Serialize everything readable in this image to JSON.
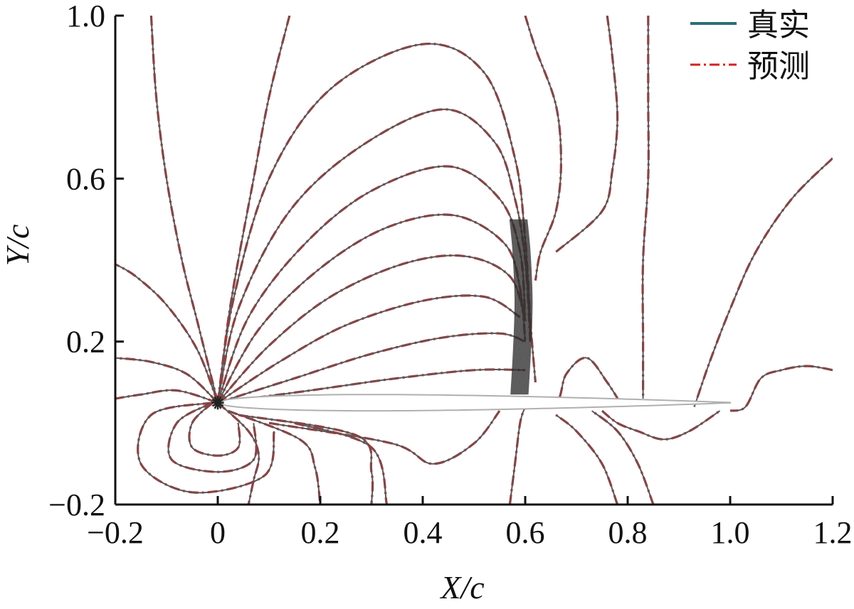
{
  "chart_data": {
    "type": "contour",
    "title": "",
    "xlabel": "X/c",
    "ylabel": "Y/c",
    "xlim": [
      -0.2,
      1.2
    ],
    "ylim": [
      -0.2,
      1.0
    ],
    "xticks": [
      -0.2,
      0,
      0.2,
      0.4,
      0.6,
      0.8,
      1.0,
      1.2
    ],
    "xtick_labels": [
      "−0.2",
      "0",
      "0.2",
      "0.4",
      "0.6",
      "0.8",
      "1.0",
      "1.2"
    ],
    "yticks": [
      -0.2,
      0.2,
      0.6,
      1.0
    ],
    "ytick_labels": [
      "−0.2",
      "0.2",
      "0.6",
      "1.0"
    ],
    "grid": false,
    "legend_position": "top-right",
    "series": [
      {
        "name": "真实",
        "style": "solid",
        "color": "#2a6f78"
      },
      {
        "name": "预测",
        "style": "dash-dot",
        "color": "#d42020"
      }
    ],
    "airfoil": {
      "leading_edge": [
        0.0,
        0.05
      ],
      "trailing_edge": [
        1.0,
        0.05
      ],
      "max_thickness": 0.08
    },
    "shock_x": 0.6,
    "contours": [
      [
        [
          -0.13,
          1.0
        ],
        [
          -0.12,
          0.8
        ],
        [
          -0.1,
          0.6
        ],
        [
          -0.07,
          0.4
        ],
        [
          -0.04,
          0.25
        ],
        [
          -0.01,
          0.1
        ],
        [
          0.0,
          0.05
        ]
      ],
      [
        [
          0.14,
          1.0
        ],
        [
          0.1,
          0.8
        ],
        [
          0.07,
          0.6
        ],
        [
          0.04,
          0.4
        ],
        [
          0.02,
          0.25
        ],
        [
          0.005,
          0.1
        ],
        [
          0.0,
          0.05
        ]
      ],
      [
        [
          0.0,
          0.05
        ],
        [
          0.03,
          0.3
        ],
        [
          0.1,
          0.6
        ],
        [
          0.22,
          0.82
        ],
        [
          0.4,
          0.93
        ],
        [
          0.52,
          0.86
        ],
        [
          0.58,
          0.65
        ],
        [
          0.6,
          0.45
        ],
        [
          0.61,
          0.25
        ],
        [
          0.62,
          0.1
        ]
      ],
      [
        [
          0.0,
          0.05
        ],
        [
          0.04,
          0.28
        ],
        [
          0.14,
          0.52
        ],
        [
          0.28,
          0.68
        ],
        [
          0.44,
          0.77
        ],
        [
          0.54,
          0.69
        ],
        [
          0.58,
          0.55
        ],
        [
          0.6,
          0.4
        ],
        [
          0.61,
          0.2
        ]
      ],
      [
        [
          0.0,
          0.05
        ],
        [
          0.06,
          0.26
        ],
        [
          0.17,
          0.44
        ],
        [
          0.3,
          0.57
        ],
        [
          0.45,
          0.63
        ],
        [
          0.55,
          0.55
        ],
        [
          0.59,
          0.42
        ],
        [
          0.6,
          0.25
        ]
      ],
      [
        [
          0.0,
          0.05
        ],
        [
          0.08,
          0.23
        ],
        [
          0.2,
          0.38
        ],
        [
          0.33,
          0.48
        ],
        [
          0.46,
          0.51
        ],
        [
          0.56,
          0.44
        ],
        [
          0.59,
          0.33
        ],
        [
          0.6,
          0.2
        ]
      ],
      [
        [
          0.0,
          0.05
        ],
        [
          0.1,
          0.19
        ],
        [
          0.22,
          0.31
        ],
        [
          0.36,
          0.39
        ],
        [
          0.48,
          0.41
        ],
        [
          0.57,
          0.36
        ],
        [
          0.6,
          0.25
        ]
      ],
      [
        [
          0.0,
          0.05
        ],
        [
          0.12,
          0.15
        ],
        [
          0.25,
          0.24
        ],
        [
          0.4,
          0.3
        ],
        [
          0.52,
          0.31
        ],
        [
          0.59,
          0.26
        ]
      ],
      [
        [
          0.0,
          0.05
        ],
        [
          0.15,
          0.11
        ],
        [
          0.3,
          0.17
        ],
        [
          0.44,
          0.21
        ],
        [
          0.55,
          0.22
        ],
        [
          0.6,
          0.2
        ]
      ],
      [
        [
          0.0,
          0.05
        ],
        [
          0.18,
          0.08
        ],
        [
          0.35,
          0.11
        ],
        [
          0.5,
          0.13
        ],
        [
          0.6,
          0.13
        ]
      ],
      [
        [
          0.0,
          0.05
        ],
        [
          -0.04,
          0.18
        ],
        [
          -0.1,
          0.29
        ],
        [
          -0.16,
          0.36
        ],
        [
          -0.2,
          0.39
        ]
      ],
      [
        [
          0.0,
          0.05
        ],
        [
          -0.06,
          0.12
        ],
        [
          -0.13,
          0.15
        ],
        [
          -0.2,
          0.16
        ]
      ],
      [
        [
          0.0,
          0.05
        ],
        [
          -0.08,
          0.08
        ],
        [
          -0.15,
          0.07
        ],
        [
          -0.2,
          0.06
        ]
      ],
      [
        [
          0.84,
          1.0
        ],
        [
          0.84,
          0.8
        ],
        [
          0.84,
          0.6
        ],
        [
          0.83,
          0.4
        ],
        [
          0.83,
          0.2
        ],
        [
          0.83,
          0.06
        ]
      ],
      [
        [
          1.2,
          0.65
        ],
        [
          1.12,
          0.55
        ],
        [
          1.05,
          0.42
        ],
        [
          1.0,
          0.28
        ],
        [
          0.96,
          0.15
        ],
        [
          0.93,
          0.04
        ]
      ],
      [
        [
          1.2,
          0.13
        ],
        [
          1.15,
          0.14
        ],
        [
          1.1,
          0.13
        ],
        [
          1.06,
          0.11
        ],
        [
          1.03,
          0.04
        ],
        [
          1.0,
          0.03
        ]
      ],
      [
        [
          0.76,
          1.0
        ],
        [
          0.77,
          0.9
        ],
        [
          0.78,
          0.75
        ],
        [
          0.77,
          0.62
        ],
        [
          0.75,
          0.52
        ],
        [
          0.66,
          0.42
        ]
      ],
      [
        [
          0.6,
          1.0
        ],
        [
          0.62,
          0.92
        ],
        [
          0.66,
          0.78
        ],
        [
          0.67,
          0.64
        ],
        [
          0.66,
          0.52
        ],
        [
          0.63,
          0.42
        ],
        [
          0.62,
          0.35
        ]
      ],
      [
        [
          0.0,
          0.05
        ],
        [
          0.06,
          -0.02
        ],
        [
          0.08,
          -0.08
        ],
        [
          0.07,
          -0.14
        ],
        [
          0.06,
          -0.2
        ]
      ],
      [
        [
          0.02,
          0.03
        ],
        [
          0.16,
          -0.04
        ],
        [
          0.19,
          -0.11
        ],
        [
          0.2,
          -0.2
        ]
      ],
      [
        [
          0.04,
          0.02
        ],
        [
          0.27,
          -0.03
        ],
        [
          0.3,
          -0.12
        ],
        [
          0.3,
          -0.2
        ]
      ],
      [
        [
          0.1,
          0.0
        ],
        [
          0.34,
          -0.05
        ],
        [
          0.42,
          -0.1
        ],
        [
          0.5,
          -0.05
        ],
        [
          0.55,
          0.03
        ]
      ],
      [
        [
          0.15,
          0.0
        ],
        [
          0.3,
          -0.06
        ],
        [
          0.33,
          -0.2
        ]
      ],
      [
        [
          0.57,
          -0.2
        ],
        [
          0.58,
          -0.1
        ],
        [
          0.59,
          0.0
        ],
        [
          0.6,
          0.04
        ]
      ],
      [
        [
          0.78,
          -0.2
        ],
        [
          0.75,
          -0.1
        ],
        [
          0.7,
          -0.02
        ],
        [
          0.66,
          0.02
        ]
      ],
      [
        [
          0.85,
          -0.2
        ],
        [
          0.82,
          -0.1
        ],
        [
          0.78,
          -0.02
        ],
        [
          0.73,
          0.03
        ]
      ],
      [
        [
          0.6,
          0.04
        ],
        [
          0.66,
          0.05
        ],
        [
          0.68,
          0.12
        ],
        [
          0.72,
          0.16
        ],
        [
          0.76,
          0.1
        ],
        [
          0.79,
          0.04
        ]
      ],
      [
        [
          0.75,
          0.03
        ],
        [
          0.78,
          0.0
        ],
        [
          0.82,
          -0.02
        ],
        [
          0.87,
          -0.04
        ],
        [
          0.92,
          -0.02
        ],
        [
          0.98,
          0.03
        ]
      ],
      [
        [
          -0.01,
          0.05
        ],
        [
          -0.05,
          0.0
        ],
        [
          -0.05,
          -0.06
        ],
        [
          0.0,
          -0.08
        ],
        [
          0.04,
          -0.06
        ],
        [
          0.04,
          0.0
        ]
      ],
      [
        [
          -0.01,
          0.05
        ],
        [
          -0.08,
          0.0
        ],
        [
          -0.09,
          -0.09
        ],
        [
          0.0,
          -0.12
        ],
        [
          0.07,
          -0.09
        ],
        [
          0.07,
          0.0
        ]
      ],
      [
        [
          -0.01,
          0.05
        ],
        [
          -0.13,
          0.02
        ],
        [
          -0.15,
          -0.1
        ],
        [
          -0.05,
          -0.17
        ],
        [
          0.09,
          -0.13
        ],
        [
          0.11,
          -0.02
        ]
      ]
    ]
  }
}
